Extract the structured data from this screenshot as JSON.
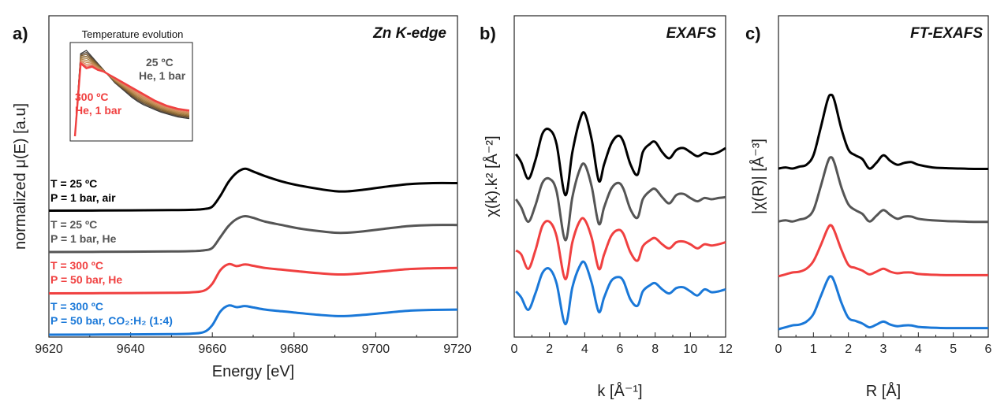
{
  "chart_data": [
    {
      "panel": "a)",
      "type": "line",
      "title": "Zn K-edge",
      "xlabel": "Energy [eV]",
      "ylabel": "normalized μ(E) [a.u]",
      "xlim": [
        9620,
        9720
      ],
      "xticks": [
        "9620",
        "9640",
        "9660",
        "9680",
        "9700",
        "9720"
      ],
      "yticks": [],
      "series": [
        {
          "name": "T = 25 °C, P = 1 bar, air",
          "label_lines": [
            "T = 25 ºC",
            "P = 1 bar, air"
          ],
          "color": "#000000",
          "offset": 4.5,
          "x": [
            9620,
            9640,
            9650,
            9655,
            9658,
            9660,
            9662,
            9664,
            9666,
            9668,
            9670,
            9673,
            9677,
            9681,
            9686,
            9690,
            9693,
            9697,
            9702,
            9708,
            9714,
            9720
          ],
          "y": [
            0.0,
            0.01,
            0.02,
            0.03,
            0.06,
            0.15,
            0.55,
            1.05,
            1.38,
            1.52,
            1.42,
            1.25,
            1.06,
            0.92,
            0.79,
            0.71,
            0.7,
            0.76,
            0.86,
            0.96,
            1.0,
            1.0
          ]
        },
        {
          "name": "T = 25 °C, P = 1 bar, He",
          "label_lines": [
            "T = 25 ºC",
            "P = 1 bar, He"
          ],
          "color": "#555555",
          "offset": 3.0,
          "x": [
            9620,
            9640,
            9650,
            9655,
            9658,
            9660,
            9662,
            9664,
            9666,
            9668,
            9670,
            9673,
            9677,
            9681,
            9686,
            9690,
            9693,
            9697,
            9702,
            9708,
            9714,
            9720
          ],
          "y": [
            0.0,
            0.01,
            0.02,
            0.03,
            0.06,
            0.15,
            0.55,
            0.95,
            1.2,
            1.3,
            1.24,
            1.1,
            0.98,
            0.86,
            0.76,
            0.7,
            0.7,
            0.75,
            0.84,
            0.94,
            0.98,
            0.98
          ]
        },
        {
          "name": "T = 300 °C, P = 50 bar, He",
          "label_lines": [
            "T = 300 ºC",
            "P = 50 bar, He"
          ],
          "color": "#f04040",
          "offset": 1.5,
          "x": [
            9620,
            9640,
            9650,
            9655,
            9658,
            9660,
            9662,
            9664,
            9666,
            9668,
            9670,
            9673,
            9677,
            9681,
            9686,
            9690,
            9693,
            9697,
            9702,
            9708,
            9714,
            9720
          ],
          "y": [
            0.0,
            0.01,
            0.02,
            0.04,
            0.1,
            0.35,
            0.85,
            1.06,
            0.99,
            1.05,
            1.0,
            0.92,
            0.86,
            0.8,
            0.73,
            0.69,
            0.69,
            0.73,
            0.8,
            0.88,
            0.91,
            0.92
          ]
        },
        {
          "name": "T = 300 °C, P = 50 bar, CO2:H2 (1:4)",
          "label_lines": [
            "T = 300 ºC",
            "P = 50 bar, CO₂:H₂ (1:4)"
          ],
          "color": "#1a78d8",
          "offset": 0.0,
          "x": [
            9620,
            9640,
            9650,
            9655,
            9658,
            9660,
            9662,
            9664,
            9666,
            9668,
            9670,
            9673,
            9677,
            9681,
            9686,
            9690,
            9693,
            9697,
            9702,
            9708,
            9714,
            9720
          ],
          "y": [
            0.0,
            0.01,
            0.02,
            0.04,
            0.1,
            0.35,
            0.85,
            1.06,
            1.0,
            1.04,
            0.99,
            0.91,
            0.85,
            0.79,
            0.72,
            0.68,
            0.68,
            0.72,
            0.79,
            0.87,
            0.9,
            0.91
          ]
        }
      ],
      "inset": {
        "title": "Temperature evolution",
        "labels": [
          {
            "lines": [
              "25 ºC",
              "He, 1 bar"
            ],
            "color": "#555555"
          },
          {
            "lines": [
              "300 ºC",
              "He, 1 bar"
            ],
            "color": "#f04040"
          }
        ],
        "series_colors": [
          "#3a3a3a",
          "#5a4a3a",
          "#7a5a30",
          "#8f6a35",
          "#a37a40",
          "#b88a50",
          "#c88a55",
          "#d88a60",
          "#e36a55",
          "#f04040"
        ],
        "x": [
          0,
          0.05,
          0.1,
          0.15,
          0.2,
          0.25,
          0.3,
          0.35,
          0.4,
          0.45,
          0.5,
          0.55,
          0.6,
          0.65,
          0.7,
          0.75,
          0.8,
          0.85,
          0.9,
          0.95,
          1.0
        ],
        "hot_y": [
          0.0,
          0.82,
          0.76,
          0.78,
          0.74,
          0.72,
          0.68,
          0.64,
          0.6,
          0.56,
          0.52,
          0.48,
          0.44,
          0.4,
          0.36,
          0.33,
          0.3,
          0.28,
          0.26,
          0.25,
          0.24
        ],
        "cold_y": [
          0.0,
          0.94,
          0.98,
          0.9,
          0.82,
          0.74,
          0.66,
          0.58,
          0.52,
          0.46,
          0.4,
          0.35,
          0.31,
          0.28,
          0.25,
          0.22,
          0.2,
          0.18,
          0.16,
          0.15,
          0.14
        ]
      }
    },
    {
      "panel": "b)",
      "type": "line",
      "title": "EXAFS",
      "xlabel": "k [Å⁻¹]",
      "ylabel": "χ(k).k² [Å⁻²]",
      "xlim": [
        0,
        12
      ],
      "xticks": [
        "0",
        "2",
        "4",
        "6",
        "8",
        "10",
        "12"
      ],
      "yticks": [],
      "series": [
        {
          "name": "T = 25 °C, P = 1 bar, air",
          "color": "#000000",
          "offset": 3.3,
          "x": [
            0.1,
            0.4,
            0.8,
            1.2,
            1.6,
            2.0,
            2.4,
            2.9,
            3.3,
            3.7,
            4.0,
            4.4,
            4.8,
            5.1,
            5.5,
            5.9,
            6.2,
            6.6,
            7.0,
            7.3,
            7.7,
            8.0,
            8.4,
            8.8,
            9.2,
            9.6,
            10.0,
            10.4,
            10.8,
            11.2,
            11.6,
            12.0
          ],
          "y": [
            0.05,
            -0.15,
            -0.55,
            -0.1,
            0.55,
            0.65,
            0.3,
            -0.95,
            0.1,
            0.85,
            1.05,
            0.4,
            -0.6,
            -0.2,
            0.3,
            0.5,
            0.35,
            -0.2,
            -0.45,
            0.1,
            0.3,
            0.35,
            0.1,
            -0.05,
            0.15,
            0.2,
            0.1,
            0.0,
            0.08,
            0.05,
            0.1,
            0.2
          ]
        },
        {
          "name": "T = 25 °C, P = 1 bar, He",
          "color": "#555555",
          "offset": 2.2,
          "x": [
            0.1,
            0.4,
            0.8,
            1.2,
            1.6,
            2.0,
            2.4,
            2.9,
            3.3,
            3.7,
            4.0,
            4.4,
            4.8,
            5.1,
            5.5,
            5.9,
            6.2,
            6.6,
            7.0,
            7.3,
            7.7,
            8.0,
            8.4,
            8.8,
            9.2,
            9.6,
            10.0,
            10.4,
            10.8,
            11.2,
            11.6,
            12.0
          ],
          "y": [
            0.05,
            -0.15,
            -0.5,
            -0.1,
            0.45,
            0.55,
            0.25,
            -0.95,
            0.1,
            0.75,
            0.9,
            0.35,
            -0.55,
            -0.15,
            0.3,
            0.45,
            0.3,
            -0.2,
            -0.4,
            0.05,
            0.25,
            0.3,
            0.1,
            -0.05,
            0.15,
            0.18,
            0.08,
            0.0,
            0.08,
            0.05,
            0.08,
            0.1
          ]
        },
        {
          "name": "T = 300 °C, P = 50 bar, He",
          "color": "#f04040",
          "offset": 1.1,
          "x": [
            0.1,
            0.4,
            0.8,
            1.2,
            1.6,
            2.0,
            2.4,
            2.9,
            3.3,
            3.7,
            4.0,
            4.4,
            4.8,
            5.1,
            5.5,
            5.9,
            6.2,
            6.6,
            7.0,
            7.3,
            7.7,
            8.0,
            8.4,
            8.8,
            9.2,
            9.6,
            10.0,
            10.4,
            10.8,
            11.2,
            11.6,
            12.0
          ],
          "y": [
            -0.1,
            -0.2,
            -0.55,
            -0.1,
            0.5,
            0.6,
            0.25,
            -0.8,
            0.1,
            0.6,
            0.65,
            0.2,
            -0.55,
            -0.2,
            0.25,
            0.4,
            0.3,
            -0.15,
            -0.35,
            0.0,
            0.15,
            0.2,
            0.05,
            -0.05,
            0.1,
            0.12,
            0.05,
            -0.05,
            0.05,
            0.02,
            0.05,
            0.1
          ]
        },
        {
          "name": "T = 300 °C, P = 50 bar, CO2:H2 (1:4)",
          "color": "#1a78d8",
          "offset": 0.0,
          "x": [
            0.1,
            0.4,
            0.8,
            1.2,
            1.6,
            2.0,
            2.4,
            2.9,
            3.3,
            3.7,
            4.0,
            4.4,
            4.8,
            5.1,
            5.5,
            5.9,
            6.2,
            6.6,
            7.0,
            7.3,
            7.7,
            8.0,
            8.4,
            8.8,
            9.2,
            9.6,
            10.0,
            10.4,
            10.8,
            11.2,
            11.6,
            12.0
          ],
          "y": [
            0.0,
            -0.15,
            -0.45,
            -0.05,
            0.45,
            0.55,
            0.2,
            -0.8,
            0.1,
            0.6,
            0.7,
            0.2,
            -0.5,
            -0.15,
            0.25,
            0.35,
            0.25,
            -0.2,
            -0.35,
            0.0,
            0.15,
            0.2,
            0.05,
            -0.05,
            0.08,
            0.1,
            0.0,
            -0.1,
            0.05,
            -0.02,
            0.0,
            0.05
          ]
        }
      ]
    },
    {
      "panel": "c)",
      "type": "line",
      "title": "FT-EXAFS",
      "xlabel": "R [Å]",
      "ylabel": "|χ(R)| [Å⁻³]",
      "xlim": [
        0,
        6
      ],
      "xticks": [
        "0",
        "1",
        "2",
        "3",
        "4",
        "5",
        "6"
      ],
      "yticks": [],
      "series": [
        {
          "name": "T = 25 °C, P = 1 bar, air",
          "color": "#000000",
          "offset": 4.2,
          "x": [
            0.0,
            0.2,
            0.4,
            0.6,
            0.8,
            1.0,
            1.2,
            1.4,
            1.5,
            1.6,
            1.8,
            2.0,
            2.2,
            2.4,
            2.6,
            2.8,
            3.0,
            3.2,
            3.4,
            3.6,
            3.8,
            4.0,
            4.4,
            4.8,
            5.2,
            5.6,
            6.0
          ],
          "y": [
            0.05,
            0.08,
            0.05,
            0.1,
            0.15,
            0.4,
            1.1,
            1.85,
            2.0,
            1.85,
            1.1,
            0.55,
            0.4,
            0.3,
            0.05,
            0.2,
            0.4,
            0.25,
            0.15,
            0.2,
            0.22,
            0.15,
            0.08,
            0.06,
            0.05,
            0.04,
            0.04
          ]
        },
        {
          "name": "T = 25 °C, P = 1 bar, He",
          "color": "#555555",
          "offset": 2.8,
          "x": [
            0.0,
            0.2,
            0.4,
            0.6,
            0.8,
            1.0,
            1.2,
            1.4,
            1.5,
            1.6,
            1.8,
            2.0,
            2.2,
            2.4,
            2.6,
            2.8,
            3.0,
            3.2,
            3.4,
            3.6,
            3.8,
            4.0,
            4.4,
            4.8,
            5.2,
            5.6,
            6.0
          ],
          "y": [
            0.05,
            0.08,
            0.05,
            0.1,
            0.15,
            0.35,
            0.95,
            1.6,
            1.75,
            1.6,
            0.95,
            0.5,
            0.35,
            0.25,
            0.05,
            0.2,
            0.35,
            0.22,
            0.12,
            0.18,
            0.18,
            0.12,
            0.08,
            0.06,
            0.05,
            0.04,
            0.04
          ]
        },
        {
          "name": "T = 300 °C, P = 50 bar, He",
          "color": "#f04040",
          "offset": 1.4,
          "x": [
            0.0,
            0.2,
            0.4,
            0.6,
            0.8,
            1.0,
            1.2,
            1.4,
            1.5,
            1.6,
            1.8,
            2.0,
            2.2,
            2.4,
            2.6,
            2.8,
            3.0,
            3.2,
            3.4,
            3.6,
            3.8,
            4.0,
            4.4,
            4.8,
            5.2,
            5.6,
            6.0
          ],
          "y": [
            0.0,
            0.05,
            0.1,
            0.12,
            0.2,
            0.4,
            0.8,
            1.25,
            1.35,
            1.2,
            0.7,
            0.3,
            0.22,
            0.15,
            0.05,
            0.12,
            0.2,
            0.12,
            0.08,
            0.1,
            0.1,
            0.06,
            0.04,
            0.03,
            0.03,
            0.03,
            0.03
          ]
        },
        {
          "name": "T = 300 °C, P = 50 bar, CO2:H2 (1:4)",
          "color": "#1a78d8",
          "offset": 0.0,
          "x": [
            0.0,
            0.2,
            0.4,
            0.6,
            0.8,
            1.0,
            1.2,
            1.4,
            1.5,
            1.6,
            1.8,
            2.0,
            2.2,
            2.4,
            2.6,
            2.8,
            3.0,
            3.2,
            3.4,
            3.6,
            3.8,
            4.0,
            4.4,
            4.8,
            5.2,
            5.6,
            6.0
          ],
          "y": [
            0.0,
            0.05,
            0.1,
            0.12,
            0.2,
            0.4,
            0.85,
            1.3,
            1.4,
            1.25,
            0.7,
            0.3,
            0.22,
            0.15,
            0.05,
            0.12,
            0.2,
            0.12,
            0.08,
            0.1,
            0.1,
            0.06,
            0.04,
            0.03,
            0.03,
            0.03,
            0.03
          ]
        }
      ]
    }
  ]
}
